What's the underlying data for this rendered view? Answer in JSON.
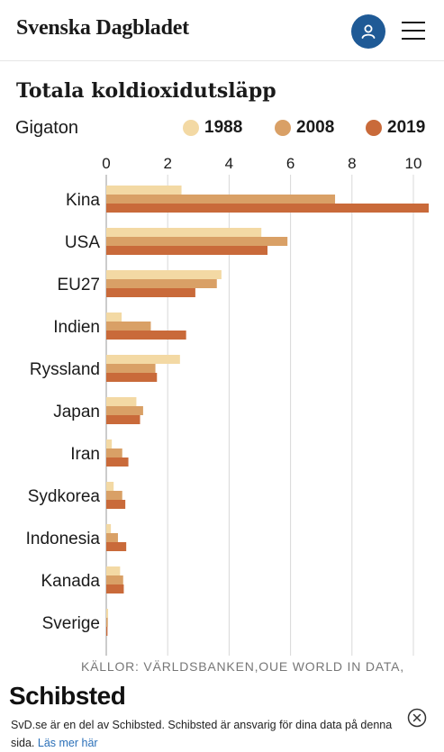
{
  "header": {
    "brand": "Svenska Dagbladet",
    "account_icon": "user-icon",
    "menu_icon": "hamburger-menu-icon"
  },
  "chart_data": {
    "type": "bar",
    "orientation": "horizontal",
    "title": "Totala koldioxidutsläpp",
    "unit_label": "Gigaton",
    "categories": [
      "Kina",
      "USA",
      "EU27",
      "Indien",
      "Ryssland",
      "Japan",
      "Iran",
      "Sydkorea",
      "Indonesia",
      "Kanada",
      "Sverige"
    ],
    "series": [
      {
        "name": "1988",
        "color": "#f3d9a4",
        "values": [
          2.45,
          5.05,
          3.75,
          0.5,
          2.4,
          0.98,
          0.18,
          0.24,
          0.15,
          0.45,
          0.06
        ]
      },
      {
        "name": "2008",
        "color": "#d9a066",
        "values": [
          7.45,
          5.9,
          3.6,
          1.45,
          1.6,
          1.2,
          0.52,
          0.52,
          0.38,
          0.55,
          0.05
        ]
      },
      {
        "name": "2019",
        "color": "#c96a3a",
        "values": [
          10.5,
          5.25,
          2.9,
          2.6,
          1.65,
          1.1,
          0.72,
          0.62,
          0.65,
          0.57,
          0.04
        ]
      }
    ],
    "xlim": [
      0,
      10.5
    ],
    "xticks": [
      0,
      2,
      4,
      6,
      8,
      10
    ],
    "grid": true,
    "legend_position": "top-right",
    "source": "KÄLLOR: VÄRLDSBANKEN,OUE WORLD IN DATA,"
  },
  "banner": {
    "logo": "Schibsted",
    "text": "SvD.se är en del av Schibsted. Schibsted är ansvarig för dina data på denna sida.",
    "link": "Läs mer här",
    "close_icon": "close-circle-icon"
  }
}
